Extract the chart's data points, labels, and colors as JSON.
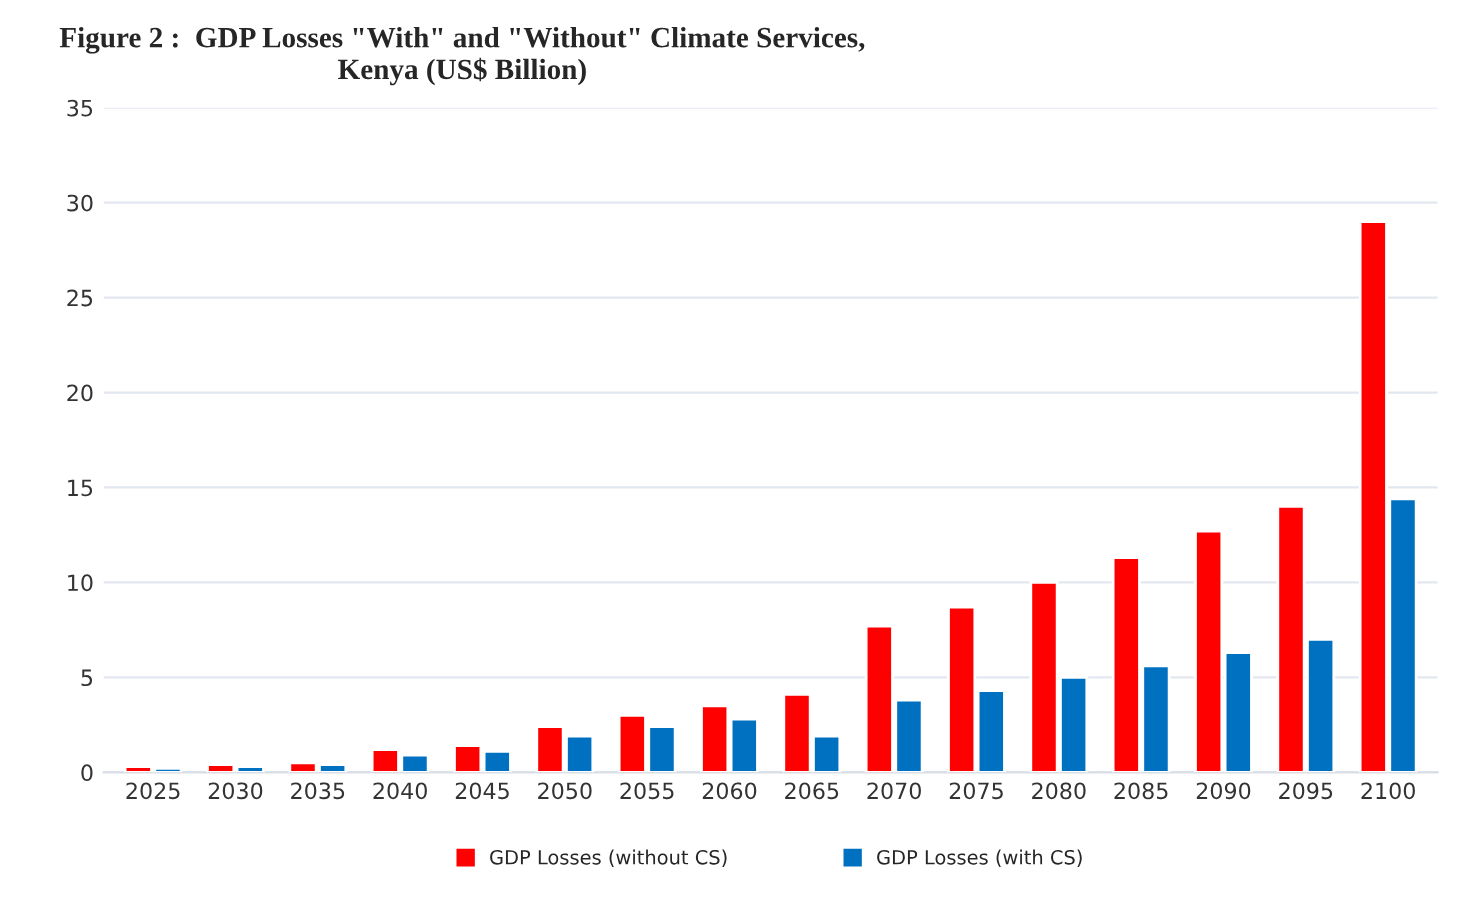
{
  "chart_data": {
    "type": "bar",
    "title": "Figure 2 :  GDP Losses \"With\" and \"Without\" Climate Services,\nKenya (US$ Billion)",
    "categories": [
      "2025",
      "2030",
      "2035",
      "2040",
      "2045",
      "2050",
      "2055",
      "2060",
      "2065",
      "2070",
      "2075",
      "2080",
      "2085",
      "2090",
      "2095",
      "2100"
    ],
    "series": [
      {
        "name": "GDP Losses (without CS)",
        "color": "#ff0000",
        "values": [
          0.3,
          0.4,
          0.5,
          1.2,
          1.4,
          2.4,
          3.0,
          3.5,
          4.1,
          7.7,
          8.7,
          10.0,
          11.3,
          12.7,
          14.0,
          29.0
        ]
      },
      {
        "name": "GDP Losses (with CS)",
        "color": "#0070c0",
        "values": [
          0.2,
          0.3,
          0.4,
          0.9,
          1.1,
          1.9,
          2.4,
          2.8,
          1.9,
          3.8,
          4.3,
          5.0,
          5.6,
          6.3,
          7.0,
          14.4
        ]
      }
    ],
    "ylim": [
      0,
      35
    ],
    "yticks": [
      0,
      5,
      10,
      15,
      20,
      25,
      30,
      35
    ],
    "grid": "y",
    "legend": "bottom"
  }
}
